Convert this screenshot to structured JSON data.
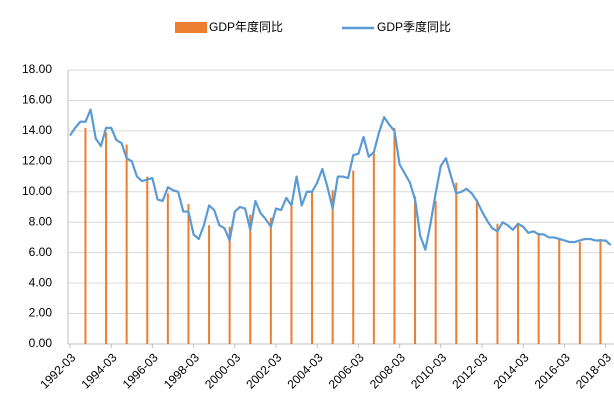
{
  "chart_data": {
    "type": "bar-line",
    "categories": [
      "1992-03",
      null,
      null,
      null,
      null,
      null,
      null,
      null,
      "1994-03",
      null,
      null,
      null,
      null,
      null,
      null,
      null,
      "1996-03",
      null,
      null,
      null,
      null,
      null,
      null,
      null,
      "1998-03",
      null,
      null,
      null,
      null,
      null,
      null,
      null,
      "2000-03",
      null,
      null,
      null,
      null,
      null,
      null,
      null,
      "2002-03",
      null,
      null,
      null,
      null,
      null,
      null,
      null,
      "2004-03",
      null,
      null,
      null,
      null,
      null,
      null,
      null,
      "2006-03",
      null,
      null,
      null,
      null,
      null,
      null,
      null,
      "2008-03",
      null,
      null,
      null,
      null,
      null,
      null,
      null,
      "2010-03",
      null,
      null,
      null,
      null,
      null,
      null,
      null,
      "2012-03",
      null,
      null,
      null,
      null,
      null,
      null,
      null,
      "2014-03",
      null,
      null,
      null,
      null,
      null,
      null,
      null,
      "2016-03",
      null,
      null,
      null,
      null,
      null,
      null,
      null,
      "2018-03",
      null
    ],
    "series": [
      {
        "name": "GDP年度同比",
        "type": "bar",
        "color": "#ed7d31",
        "values": [
          null,
          null,
          null,
          14.2,
          null,
          null,
          null,
          13.9,
          null,
          null,
          null,
          13.1,
          null,
          null,
          null,
          11.0,
          null,
          null,
          null,
          9.9,
          null,
          null,
          null,
          9.2,
          null,
          null,
          null,
          7.8,
          null,
          null,
          null,
          7.7,
          null,
          null,
          null,
          8.5,
          null,
          null,
          null,
          8.3,
          null,
          null,
          null,
          9.1,
          null,
          null,
          null,
          10.0,
          null,
          null,
          null,
          10.1,
          null,
          null,
          null,
          11.4,
          null,
          null,
          null,
          12.7,
          null,
          null,
          null,
          14.2,
          null,
          null,
          null,
          9.7,
          null,
          null,
          null,
          9.4,
          null,
          null,
          null,
          10.6,
          null,
          null,
          null,
          9.5,
          null,
          null,
          null,
          7.9,
          null,
          null,
          null,
          7.8,
          null,
          null,
          null,
          7.3,
          null,
          null,
          null,
          6.9,
          null,
          null,
          null,
          6.7,
          null,
          null,
          null,
          6.9,
          null,
          null
        ]
      },
      {
        "name": "GDP季度同比",
        "type": "line",
        "color": "#5b9bd5",
        "values": [
          13.7,
          14.2,
          14.6,
          14.6,
          15.4,
          13.5,
          13.0,
          14.2,
          14.2,
          13.4,
          13.2,
          12.2,
          12.0,
          11.0,
          10.7,
          10.8,
          10.9,
          9.5,
          9.4,
          10.3,
          10.1,
          10.0,
          8.7,
          8.7,
          7.2,
          6.9,
          7.8,
          9.1,
          8.8,
          7.8,
          7.6,
          6.8,
          8.7,
          9.0,
          8.9,
          7.5,
          9.4,
          8.6,
          8.2,
          7.7,
          8.9,
          8.8,
          9.6,
          9.1,
          11.0,
          9.1,
          10.0,
          10.0,
          10.6,
          11.5,
          10.3,
          8.9,
          11.0,
          11.0,
          10.9,
          12.4,
          12.5,
          13.6,
          12.3,
          12.6,
          13.9,
          14.9,
          14.4,
          14.0,
          11.8,
          11.2,
          10.6,
          9.5,
          7.1,
          6.2,
          7.9,
          9.9,
          11.7,
          12.2,
          11.0,
          9.9,
          10.0,
          10.2,
          9.9,
          9.4,
          8.7,
          8.1,
          7.6,
          7.4,
          8.0,
          7.8,
          7.5,
          7.9,
          7.7,
          7.3,
          7.4,
          7.2,
          7.2,
          7.0,
          7.0,
          6.9,
          6.8,
          6.7,
          6.7,
          6.8,
          6.9,
          6.9,
          6.8,
          6.8,
          6.8,
          6.5
        ]
      }
    ],
    "ylim": [
      0,
      18
    ],
    "yticks": [
      {
        "value": 0,
        "label": "0.00"
      },
      {
        "value": 2,
        "label": "2.00"
      },
      {
        "value": 4,
        "label": "4.00"
      },
      {
        "value": 6,
        "label": "6.00"
      },
      {
        "value": 8,
        "label": "8.00"
      },
      {
        "value": 10,
        "label": "10.00"
      },
      {
        "value": 12,
        "label": "12.00"
      },
      {
        "value": 14,
        "label": "14.00"
      },
      {
        "value": 16,
        "label": "16.00"
      },
      {
        "value": 18,
        "label": "18.00"
      }
    ],
    "grid": true,
    "legend": "top"
  }
}
